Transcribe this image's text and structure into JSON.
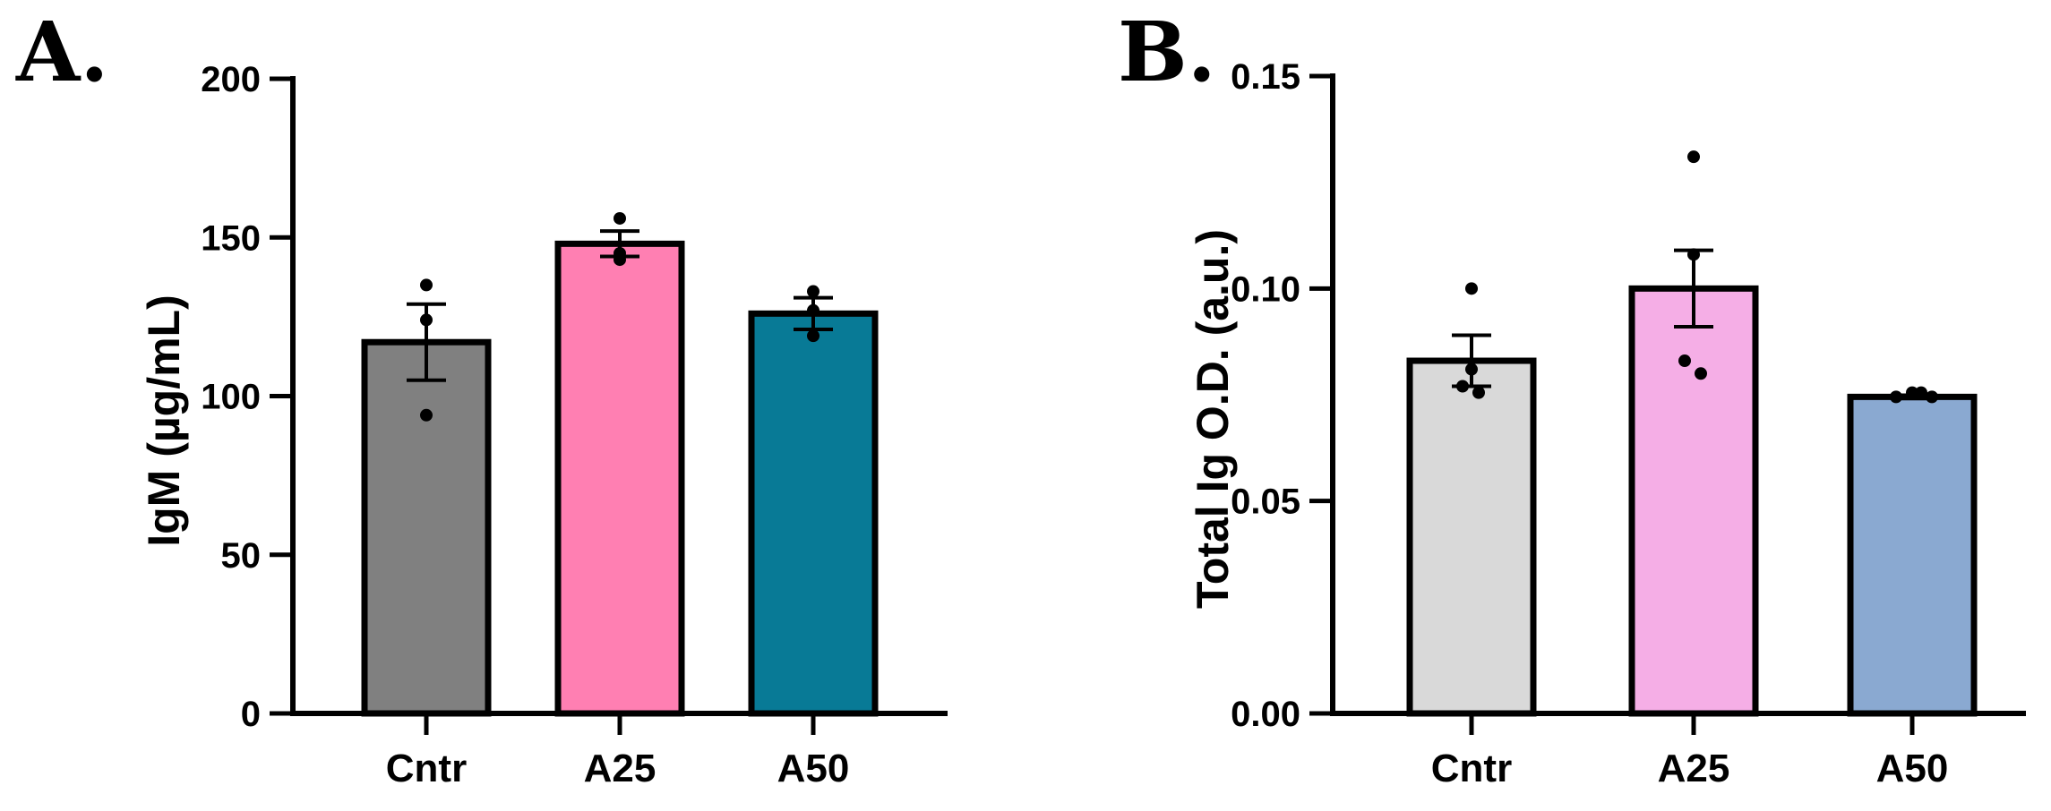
{
  "chart_data": [
    {
      "panel": "A.",
      "type": "bar",
      "title": "",
      "xlabel": "",
      "ylabel": "IgM (µg/mL)",
      "ylim": [
        0,
        200
      ],
      "yticks": [
        0,
        50,
        100,
        150,
        200
      ],
      "ytick_labels": [
        "0",
        "50",
        "100",
        "150",
        "200"
      ],
      "categories": [
        "Cntr",
        "A25",
        "A50"
      ],
      "values": [
        117,
        148,
        126
      ],
      "error": [
        12,
        4,
        5
      ],
      "points": [
        [
          135,
          124,
          94
        ],
        [
          156,
          145,
          143
        ],
        [
          133,
          127,
          119
        ]
      ],
      "colors": [
        "#808080",
        "#ff7fb2",
        "#087a96"
      ]
    },
    {
      "panel": "B.",
      "type": "bar",
      "title": "",
      "xlabel": "",
      "ylabel": "Total Ig O.D. (a.u.)",
      "ylim": [
        0,
        0.15
      ],
      "yticks": [
        0,
        0.05,
        0.1,
        0.15
      ],
      "ytick_labels": [
        "0.00",
        "0.05",
        "0.10",
        "0.15"
      ],
      "categories": [
        "Cntr",
        "A25",
        "A50"
      ],
      "values": [
        0.083,
        0.1,
        0.0745
      ],
      "error": [
        0.006,
        0.009,
        0.0004
      ],
      "points": [
        [
          0.1,
          0.081,
          0.077,
          0.0755
        ],
        [
          0.131,
          0.108,
          0.083,
          0.08
        ],
        [
          0.0745,
          0.0755,
          0.0755,
          0.0745
        ]
      ],
      "colors": [
        "#d9d9d9",
        "#f5aee6",
        "#8aa9d1"
      ]
    }
  ]
}
